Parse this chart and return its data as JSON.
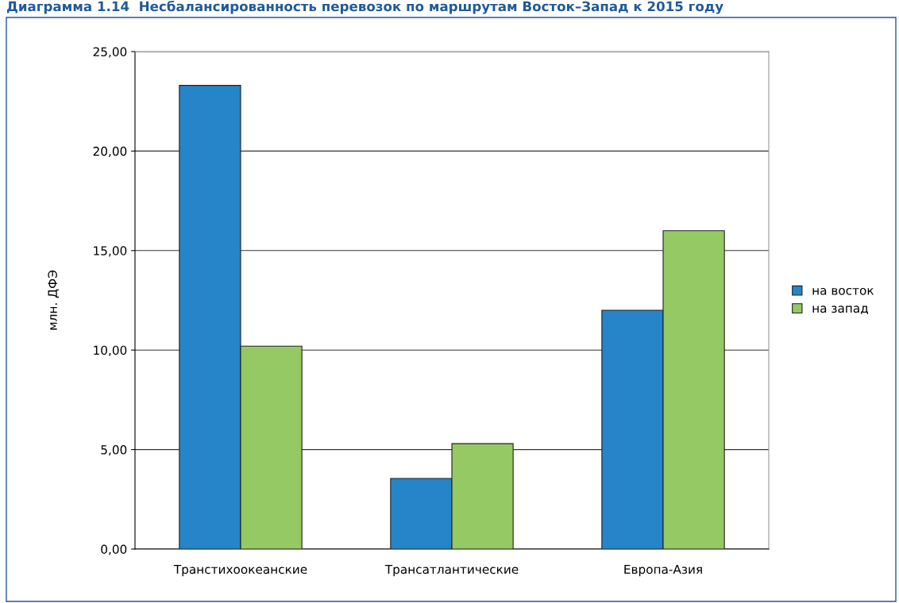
{
  "chart_data": {
    "type": "bar",
    "title": "Диаграмма 1.14  Несбалансированность перевозок по маршрутам Восток–Запад к 2015 году",
    "ylabel": "млн. ДФЭ",
    "categories": [
      "Транстихоокеанские",
      "Трансатлантические",
      "Европа-Азия"
    ],
    "series": [
      {
        "name": "на восток",
        "color": "#2585c8",
        "values": [
          23.3,
          3.55,
          12.0
        ]
      },
      {
        "name": "на запад",
        "color": "#95c964",
        "values": [
          10.2,
          5.3,
          16.0
        ]
      }
    ],
    "ylim": [
      0,
      25
    ],
    "yticks": [
      {
        "value": 0,
        "label": "0,00"
      },
      {
        "value": 5,
        "label": "5,00"
      },
      {
        "value": 10,
        "label": "10,00"
      },
      {
        "value": 15,
        "label": "15,00"
      },
      {
        "value": 20,
        "label": "20,00"
      },
      {
        "value": 25,
        "label": "25,00"
      }
    ],
    "grid": "y",
    "legend": "right"
  }
}
